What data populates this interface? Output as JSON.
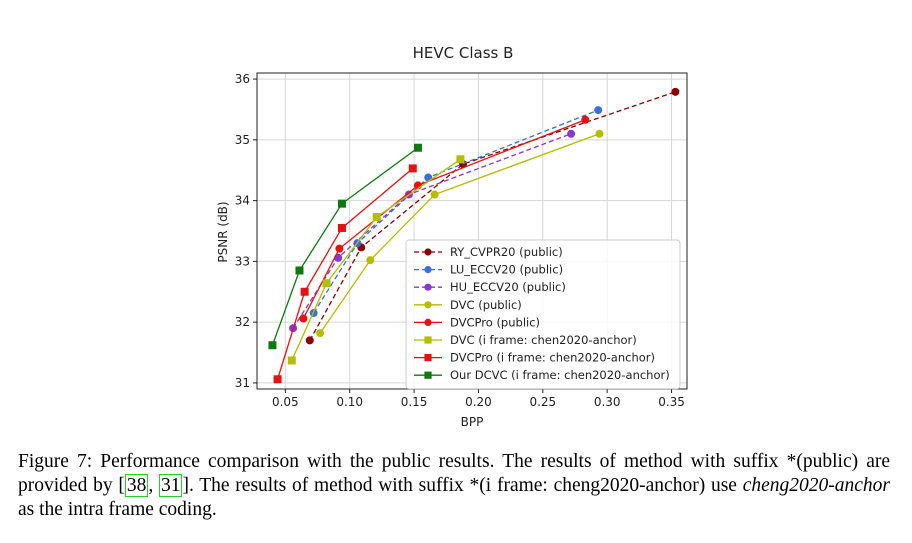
{
  "chart_data": {
    "type": "line",
    "title": "HEVC Class B",
    "xlabel": "BPP",
    "ylabel": "PSNR (dB)",
    "xlim": [
      0.028,
      0.362
    ],
    "ylim": [
      30.9,
      36.1
    ],
    "xticks": [
      "0.05",
      "0.10",
      "0.15",
      "0.20",
      "0.25",
      "0.30",
      "0.35"
    ],
    "yticks": [
      "31",
      "32",
      "33",
      "34",
      "35",
      "36"
    ],
    "grid": true,
    "legend_position": "center-right",
    "series": [
      {
        "name": "RY_CVPR20 (public)",
        "color": "#8b0000",
        "dash": true,
        "marker": "circle",
        "x": [
          0.069,
          0.109,
          0.188,
          0.353
        ],
        "y": [
          31.7,
          33.23,
          34.6,
          35.79
        ]
      },
      {
        "name": "LU_ECCV20 (public)",
        "color": "#3b6fd8",
        "dash": true,
        "marker": "circle",
        "x": [
          0.072,
          0.106,
          0.161,
          0.293
        ],
        "y": [
          32.15,
          33.3,
          34.38,
          35.49
        ]
      },
      {
        "name": "HU_ECCV20 (public)",
        "color": "#8a35d6",
        "dash": true,
        "marker": "circle",
        "x": [
          0.056,
          0.091,
          0.146,
          0.272
        ],
        "y": [
          31.9,
          33.06,
          34.1,
          35.1
        ]
      },
      {
        "name": "DVC (public)",
        "color": "#b5bd00",
        "dash": false,
        "marker": "circle",
        "x": [
          0.077,
          0.116,
          0.166,
          0.294
        ],
        "y": [
          31.82,
          33.02,
          34.1,
          35.1
        ]
      },
      {
        "name": "DVCPro (public)",
        "color": "#e81010",
        "dash": false,
        "marker": "circle",
        "x": [
          0.064,
          0.092,
          0.153,
          0.283
        ],
        "y": [
          32.06,
          33.21,
          34.25,
          35.33
        ]
      },
      {
        "name": "DVC (i frame: chen2020-anchor)",
        "color": "#b5bd00",
        "dash": false,
        "marker": "square",
        "x": [
          0.055,
          0.082,
          0.121,
          0.186
        ],
        "y": [
          31.37,
          32.64,
          33.73,
          34.68
        ]
      },
      {
        "name": "DVCPro (i frame: chen2020-anchor)",
        "color": "#e81010",
        "dash": false,
        "marker": "square",
        "x": [
          0.044,
          0.065,
          0.094,
          0.149
        ],
        "y": [
          31.06,
          32.5,
          33.55,
          34.53
        ]
      },
      {
        "name": "Our DCVC (i frame: chen2020-anchor)",
        "color": "#117711",
        "dash": false,
        "marker": "square",
        "x": [
          0.04,
          0.061,
          0.094,
          0.153
        ],
        "y": [
          31.62,
          32.85,
          33.95,
          34.87
        ]
      }
    ]
  },
  "caption": {
    "p1": "Figure 7: Performance comparison with the public results. The results of method with suffix *(public) are provided by [",
    "ref1": "38",
    "sep": ", ",
    "ref2": "31",
    "p2": "]. The results of method with suffix *(i frame: cheng2020-anchor) use ",
    "em": "cheng2020-anchor",
    "p3": " as the intra frame coding."
  }
}
